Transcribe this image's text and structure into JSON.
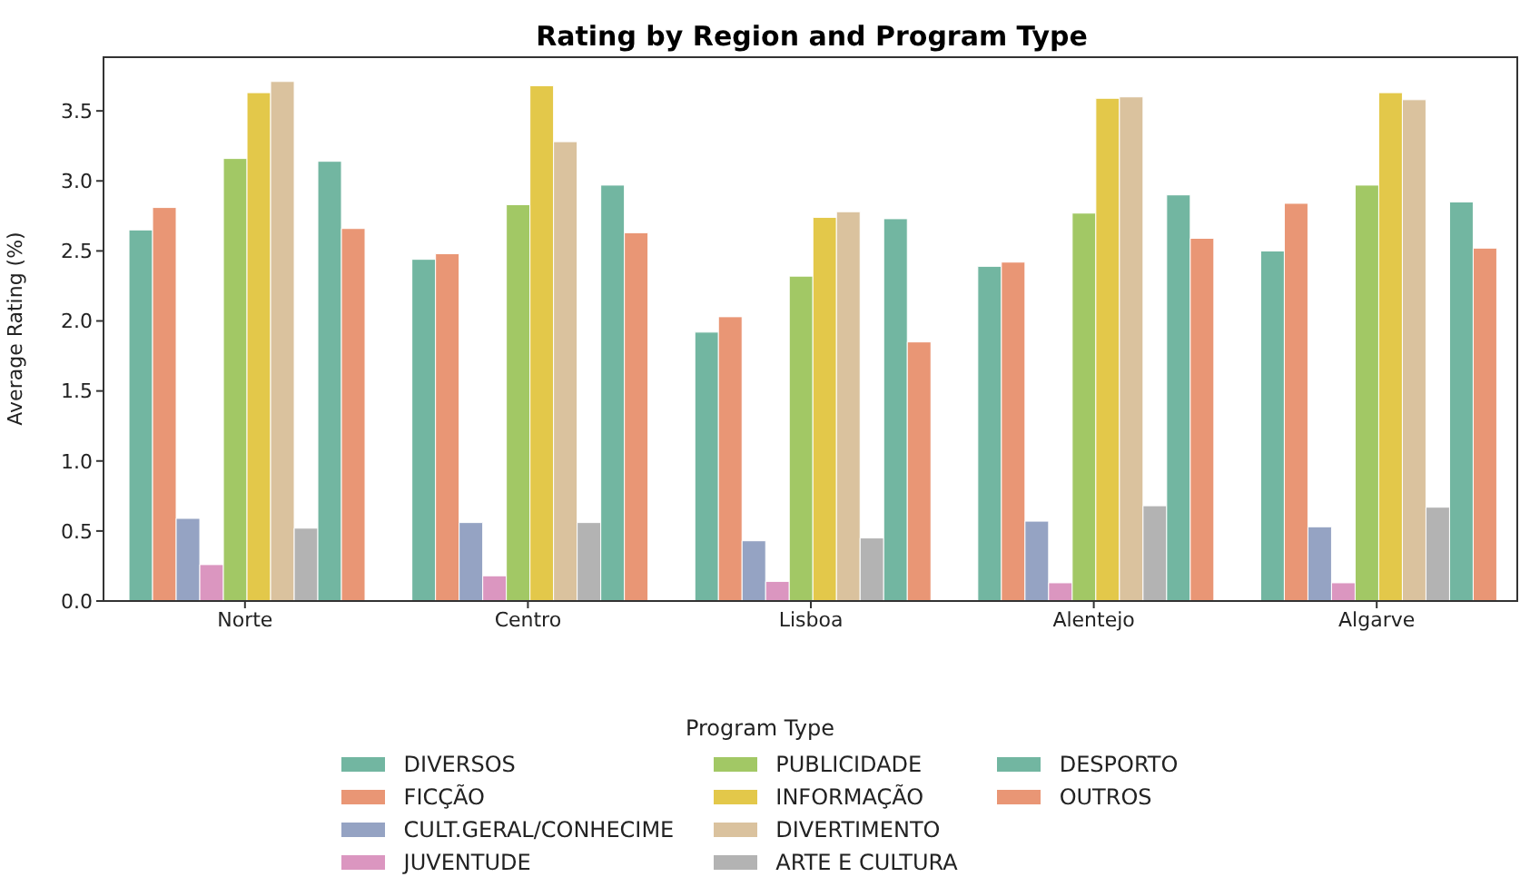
{
  "chart_data": {
    "type": "bar",
    "title": "Rating by Region and Program Type",
    "ylabel": "Average Rating (%)",
    "legend_title": "Program Type",
    "categories": [
      "Norte",
      "Centro",
      "Lisboa",
      "Alentejo",
      "Algarve"
    ],
    "series": [
      {
        "name": "DIVERSOS",
        "color": "#72b6a1",
        "values": [
          2.65,
          2.44,
          1.92,
          2.39,
          2.5
        ]
      },
      {
        "name": "FICÇÃO",
        "color": "#e99675",
        "values": [
          2.81,
          2.48,
          2.03,
          2.42,
          2.84
        ]
      },
      {
        "name": "CULT.GERAL/CONHECIME",
        "color": "#95a3c3",
        "values": [
          0.59,
          0.56,
          0.43,
          0.57,
          0.53
        ]
      },
      {
        "name": "JUVENTUDE",
        "color": "#db96c0",
        "values": [
          0.26,
          0.18,
          0.14,
          0.13,
          0.13
        ]
      },
      {
        "name": "PUBLICIDADE",
        "color": "#a2c865",
        "values": [
          3.16,
          2.83,
          2.32,
          2.77,
          2.97
        ]
      },
      {
        "name": "INFORMAÇÃO",
        "color": "#e3c84a",
        "values": [
          3.63,
          3.68,
          2.74,
          3.59,
          3.63
        ]
      },
      {
        "name": "DIVERTIMENTO",
        "color": "#dac29e",
        "values": [
          3.71,
          3.28,
          2.78,
          3.6,
          3.58
        ]
      },
      {
        "name": "ARTE E CULTURA",
        "color": "#b3b3b3",
        "values": [
          0.52,
          0.56,
          0.45,
          0.68,
          0.67
        ]
      },
      {
        "name": "DESPORTO",
        "color": "#72b6a1",
        "values": [
          3.14,
          2.97,
          2.73,
          2.9,
          2.85
        ]
      },
      {
        "name": "OUTROS",
        "color": "#e99675",
        "values": [
          2.66,
          2.63,
          1.85,
          2.59,
          2.52
        ]
      }
    ],
    "ylim": [
      0,
      3.89
    ],
    "yticks": [
      {
        "value": 0,
        "label": "0.0"
      },
      {
        "value": 0.5,
        "label": "0.5"
      },
      {
        "value": 1,
        "label": "1.0"
      },
      {
        "value": 1.5,
        "label": "1.5"
      },
      {
        "value": 2,
        "label": "2.0"
      },
      {
        "value": 2.5,
        "label": "2.5"
      },
      {
        "value": 3,
        "label": "3.0"
      },
      {
        "value": 3.5,
        "label": "3.5"
      }
    ],
    "grid": false,
    "legend": "bottom"
  }
}
